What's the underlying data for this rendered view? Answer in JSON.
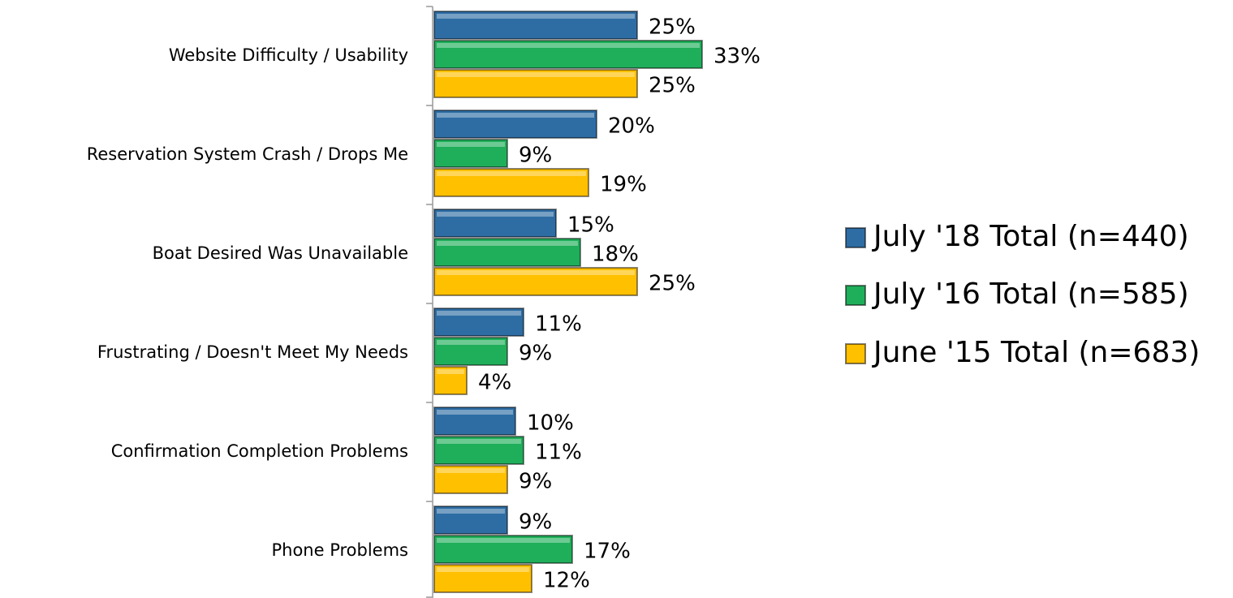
{
  "chart_data": {
    "type": "bar",
    "orientation": "horizontal",
    "categories": [
      "Website Difficulty / Usability",
      "Reservation System Crash / Drops Me",
      "Boat Desired Was Unavailable",
      "Frustrating / Doesn't Meet My Needs",
      "Confirmation Completion Problems",
      "Phone Problems"
    ],
    "series": [
      {
        "name": "July '18 Total (n=440)",
        "color": "#2e6da4",
        "values": [
          25,
          20,
          15,
          11,
          10,
          9
        ],
        "value_labels": [
          "25%",
          "20%",
          "15%",
          "11%",
          "10%",
          "9%"
        ]
      },
      {
        "name": "July '16 Total (n=585)",
        "color": "#1fae5a",
        "values": [
          33,
          9,
          18,
          9,
          11,
          17
        ],
        "value_labels": [
          "33%",
          "9%",
          "18%",
          "9%",
          "11%",
          "17%"
        ]
      },
      {
        "name": "June '15 Total (n=683)",
        "color": "#ffc000",
        "values": [
          25,
          19,
          25,
          4,
          9,
          12
        ],
        "value_labels": [
          "25%",
          "19%",
          "25%",
          "4%",
          "9%",
          "12%"
        ]
      }
    ],
    "legend": "right"
  }
}
